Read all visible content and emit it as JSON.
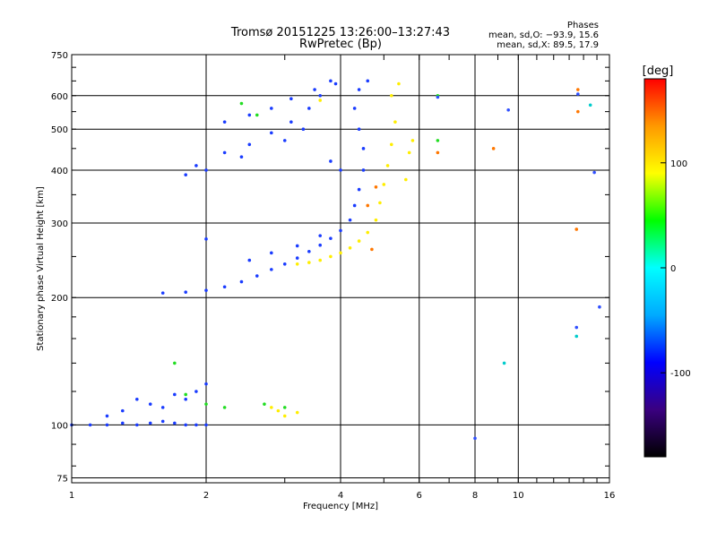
{
  "chart_data": {
    "type": "scatter",
    "title": "Tromsø 20151225 13:26:00–13:27:43",
    "subtitle": "RwPretec (Bp)",
    "phase_stats": {
      "header": "Phases",
      "line_o": "mean, sd,O: −93.9, 15.6",
      "line_x": "mean, sd,X: 89.5, 17.9"
    },
    "xlabel": "Frequency [MHz]",
    "ylabel": "Stationary phase Virtual Height [km]",
    "xscale": "log",
    "yscale": "log",
    "xlim": [
      1,
      16
    ],
    "ylim": [
      73,
      750
    ],
    "x_ticks": [
      1,
      2,
      4,
      6,
      8,
      10,
      16
    ],
    "y_ticks": [
      75,
      100,
      200,
      300,
      400,
      500,
      600,
      750
    ],
    "grid": true,
    "colorbar": {
      "label": "[deg]",
      "range": [
        -180,
        180
      ],
      "ticks": [
        100,
        0,
        -100
      ],
      "colors": [
        "#000000",
        "#3a0080",
        "#0000ff",
        "#00aaff",
        "#00ffff",
        "#00ff00",
        "#ffff00",
        "#ff9900",
        "#ff0000"
      ]
    },
    "series": [
      {
        "phase": -95,
        "color": "#1a3cff",
        "points": [
          [
            1.0,
            100
          ],
          [
            1.1,
            100
          ],
          [
            1.2,
            100
          ],
          [
            1.3,
            101
          ],
          [
            1.4,
            100
          ],
          [
            1.5,
            101
          ],
          [
            1.6,
            102
          ],
          [
            1.7,
            101
          ],
          [
            1.8,
            100
          ],
          [
            1.9,
            100
          ],
          [
            2.0,
            100
          ],
          [
            1.2,
            105
          ],
          [
            1.3,
            108
          ],
          [
            1.5,
            112
          ],
          [
            1.6,
            110
          ],
          [
            1.8,
            115
          ],
          [
            1.9,
            120
          ],
          [
            2.0,
            125
          ],
          [
            1.4,
            115
          ],
          [
            1.7,
            118
          ],
          [
            1.6,
            205
          ],
          [
            1.8,
            206
          ],
          [
            2.0,
            208
          ],
          [
            2.2,
            212
          ],
          [
            2.4,
            218
          ],
          [
            2.6,
            225
          ],
          [
            2.8,
            233
          ],
          [
            3.0,
            240
          ],
          [
            3.2,
            248
          ],
          [
            3.4,
            257
          ],
          [
            3.6,
            266
          ],
          [
            3.8,
            276
          ],
          [
            4.0,
            288
          ],
          [
            4.2,
            305
          ],
          [
            4.3,
            330
          ],
          [
            4.4,
            360
          ],
          [
            4.5,
            400
          ],
          [
            4.5,
            450
          ],
          [
            4.4,
            500
          ],
          [
            4.3,
            560
          ],
          [
            4.4,
            620
          ],
          [
            4.6,
            650
          ],
          [
            4.0,
            400
          ],
          [
            3.8,
            420
          ],
          [
            2.5,
            245
          ],
          [
            2.8,
            255
          ],
          [
            3.2,
            265
          ],
          [
            3.6,
            280
          ],
          [
            2.0,
            275
          ],
          [
            1.8,
            390
          ],
          [
            2.0,
            400
          ],
          [
            1.9,
            410
          ],
          [
            2.2,
            440
          ],
          [
            2.5,
            460
          ],
          [
            2.8,
            490
          ],
          [
            3.1,
            520
          ],
          [
            3.4,
            560
          ],
          [
            3.6,
            600
          ],
          [
            3.9,
            640
          ],
          [
            2.2,
            520
          ],
          [
            2.5,
            540
          ],
          [
            2.8,
            560
          ],
          [
            3.1,
            590
          ],
          [
            3.5,
            620
          ],
          [
            3.8,
            650
          ],
          [
            2.4,
            430
          ],
          [
            3.0,
            470
          ],
          [
            3.3,
            500
          ]
        ]
      },
      {
        "phase": 100,
        "color": "#ffee00",
        "points": [
          [
            3.2,
            240
          ],
          [
            3.4,
            242
          ],
          [
            3.6,
            245
          ],
          [
            3.8,
            250
          ],
          [
            4.0,
            255
          ],
          [
            4.2,
            262
          ],
          [
            4.4,
            272
          ],
          [
            4.6,
            285
          ],
          [
            4.8,
            305
          ],
          [
            4.9,
            335
          ],
          [
            5.0,
            370
          ],
          [
            5.1,
            410
          ],
          [
            5.2,
            460
          ],
          [
            5.3,
            520
          ],
          [
            5.2,
            600
          ],
          [
            5.4,
            640
          ],
          [
            5.6,
            380
          ],
          [
            5.7,
            440
          ],
          [
            5.8,
            470
          ],
          [
            2.8,
            110
          ],
          [
            2.9,
            108
          ],
          [
            3.0,
            105
          ],
          [
            3.2,
            107
          ],
          [
            3.6,
            585
          ]
        ]
      },
      {
        "phase": 10,
        "color": "#22dd22",
        "points": [
          [
            1.8,
            118
          ],
          [
            2.0,
            112
          ],
          [
            2.2,
            110
          ],
          [
            2.7,
            112
          ],
          [
            3.0,
            110
          ],
          [
            2.4,
            575
          ],
          [
            2.6,
            540
          ],
          [
            6.6,
            470
          ],
          [
            6.6,
            600
          ],
          [
            1.7,
            140
          ]
        ]
      },
      {
        "phase": 150,
        "color": "#ff7700",
        "points": [
          [
            4.7,
            260
          ],
          [
            4.6,
            330
          ],
          [
            4.8,
            365
          ],
          [
            6.6,
            440
          ],
          [
            8.8,
            450
          ],
          [
            13.5,
            290
          ],
          [
            13.6,
            620
          ],
          [
            13.6,
            550
          ]
        ]
      },
      {
        "phase": -100,
        "color": "#3050ff",
        "points": [
          [
            8.0,
            93
          ],
          [
            9.5,
            555
          ],
          [
            13.6,
            605
          ],
          [
            13.5,
            170
          ],
          [
            14.8,
            395
          ],
          [
            15.2,
            190
          ],
          [
            6.6,
            595
          ]
        ]
      },
      {
        "phase": 30,
        "color": "#00cccc",
        "points": [
          [
            9.3,
            140
          ],
          [
            14.5,
            570
          ],
          [
            13.5,
            162
          ]
        ]
      }
    ]
  }
}
